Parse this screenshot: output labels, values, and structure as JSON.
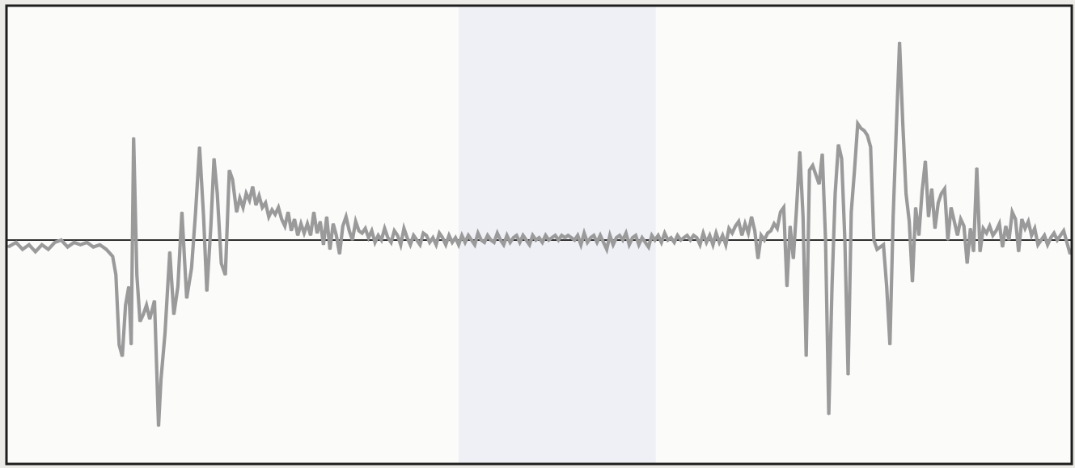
{
  "chart_data": {
    "type": "line",
    "title": "",
    "xlabel": "",
    "ylabel": "",
    "grid": false,
    "legend": "none",
    "xlim": [
      0,
      1320
    ],
    "ylim": [
      -1.0,
      1.0
    ],
    "baseline": 0,
    "colors": {
      "series": "#9a9a9a",
      "baseline": "#2f2f2f",
      "plot_background": "#fbfbfa",
      "highlight_band": "#eef0f5",
      "frame": "#1e1e1e"
    },
    "highlight_band": {
      "x_start": 560,
      "x_end": 805
    },
    "series": [
      {
        "points": [
          [
            0,
            -0.03
          ],
          [
            10,
            -0.01
          ],
          [
            18,
            -0.04
          ],
          [
            26,
            -0.02
          ],
          [
            34,
            -0.05
          ],
          [
            42,
            -0.02
          ],
          [
            50,
            -0.04
          ],
          [
            58,
            -0.01
          ],
          [
            66,
            0.0
          ],
          [
            74,
            -0.03
          ],
          [
            82,
            -0.01
          ],
          [
            90,
            -0.02
          ],
          [
            98,
            -0.01
          ],
          [
            106,
            -0.03
          ],
          [
            114,
            -0.02
          ],
          [
            122,
            -0.04
          ],
          [
            130,
            -0.07
          ],
          [
            134,
            -0.15
          ],
          [
            138,
            -0.45
          ],
          [
            142,
            -0.5
          ],
          [
            146,
            -0.28
          ],
          [
            150,
            -0.2
          ],
          [
            153,
            -0.45
          ],
          [
            156,
            0.44
          ],
          [
            160,
            -0.15
          ],
          [
            164,
            -0.35
          ],
          [
            168,
            -0.32
          ],
          [
            172,
            -0.28
          ],
          [
            176,
            -0.34
          ],
          [
            182,
            -0.26
          ],
          [
            187,
            -0.8
          ],
          [
            190,
            -0.6
          ],
          [
            195,
            -0.4
          ],
          [
            201,
            -0.05
          ],
          [
            206,
            -0.32
          ],
          [
            211,
            -0.2
          ],
          [
            216,
            0.12
          ],
          [
            222,
            -0.25
          ],
          [
            228,
            -0.12
          ],
          [
            233,
            0.12
          ],
          [
            238,
            0.4
          ],
          [
            243,
            0.1
          ],
          [
            247,
            -0.22
          ],
          [
            252,
            0.06
          ],
          [
            256,
            0.35
          ],
          [
            260,
            0.2
          ],
          [
            265,
            -0.1
          ],
          [
            270,
            -0.15
          ],
          [
            275,
            0.3
          ],
          [
            279,
            0.26
          ],
          [
            284,
            0.12
          ],
          [
            288,
            0.18
          ],
          [
            292,
            0.14
          ],
          [
            296,
            0.2
          ],
          [
            300,
            0.17
          ],
          [
            304,
            0.23
          ],
          [
            308,
            0.15
          ],
          [
            312,
            0.19
          ],
          [
            316,
            0.14
          ],
          [
            320,
            0.16
          ],
          [
            324,
            0.1
          ],
          [
            328,
            0.13
          ],
          [
            332,
            0.11
          ],
          [
            336,
            0.14
          ],
          [
            340,
            0.09
          ],
          [
            344,
            0.06
          ],
          [
            348,
            0.12
          ],
          [
            352,
            0.04
          ],
          [
            356,
            0.09
          ],
          [
            360,
            0.02
          ],
          [
            364,
            0.07
          ],
          [
            368,
            0.03
          ],
          [
            372,
            0.07
          ],
          [
            376,
            0.02
          ],
          [
            380,
            0.12
          ],
          [
            384,
            0.03
          ],
          [
            388,
            0.08
          ],
          [
            392,
            -0.02
          ],
          [
            396,
            0.1
          ],
          [
            400,
            -0.04
          ],
          [
            404,
            0.07
          ],
          [
            408,
            0.02
          ],
          [
            412,
            -0.06
          ],
          [
            416,
            0.06
          ],
          [
            420,
            0.1
          ],
          [
            424,
            0.04
          ],
          [
            428,
            0.0
          ],
          [
            432,
            0.08
          ],
          [
            436,
            0.04
          ],
          [
            440,
            0.03
          ],
          [
            444,
            0.05
          ],
          [
            448,
            0.01
          ],
          [
            452,
            0.04
          ],
          [
            456,
            -0.01
          ],
          [
            460,
            0.02
          ],
          [
            464,
            0.0
          ],
          [
            468,
            0.05
          ],
          [
            472,
            0.01
          ],
          [
            476,
            -0.01
          ],
          [
            480,
            0.04
          ],
          [
            484,
            0.02
          ],
          [
            488,
            -0.02
          ],
          [
            492,
            0.05
          ],
          [
            496,
            0.01
          ],
          [
            500,
            -0.02
          ],
          [
            504,
            0.02
          ],
          [
            508,
            0.0
          ],
          [
            512,
            -0.02
          ],
          [
            516,
            0.03
          ],
          [
            520,
            0.02
          ],
          [
            524,
            -0.01
          ],
          [
            528,
            0.01
          ],
          [
            532,
            -0.02
          ],
          [
            536,
            0.03
          ],
          [
            540,
            0.01
          ],
          [
            544,
            -0.02
          ],
          [
            548,
            0.02
          ],
          [
            552,
            -0.01
          ],
          [
            556,
            0.01
          ],
          [
            560,
            -0.02
          ],
          [
            564,
            0.02
          ],
          [
            568,
            -0.01
          ],
          [
            572,
            0.02
          ],
          [
            576,
            0.0
          ],
          [
            580,
            -0.02
          ],
          [
            584,
            0.03
          ],
          [
            588,
            0.0
          ],
          [
            592,
            -0.01
          ],
          [
            596,
            0.02
          ],
          [
            600,
            0.0
          ],
          [
            604,
            -0.01
          ],
          [
            608,
            0.03
          ],
          [
            612,
            0.0
          ],
          [
            616,
            -0.02
          ],
          [
            620,
            0.02
          ],
          [
            624,
            -0.01
          ],
          [
            628,
            0.01
          ],
          [
            632,
            0.02
          ],
          [
            636,
            -0.01
          ],
          [
            640,
            0.02
          ],
          [
            644,
            0.0
          ],
          [
            648,
            -0.02
          ],
          [
            652,
            0.02
          ],
          [
            656,
            0.0
          ],
          [
            660,
            0.01
          ],
          [
            664,
            -0.01
          ],
          [
            668,
            0.02
          ],
          [
            672,
            0.0
          ],
          [
            676,
            0.01
          ],
          [
            680,
            0.02
          ],
          [
            684,
            0.0
          ],
          [
            688,
            0.02
          ],
          [
            692,
            0.01
          ],
          [
            696,
            0.02
          ],
          [
            700,
            0.01
          ],
          [
            704,
            0.0
          ],
          [
            708,
            0.02
          ],
          [
            712,
            -0.02
          ],
          [
            716,
            0.03
          ],
          [
            720,
            -0.01
          ],
          [
            724,
            0.01
          ],
          [
            728,
            0.02
          ],
          [
            732,
            -0.01
          ],
          [
            736,
            0.02
          ],
          [
            740,
            -0.01
          ],
          [
            744,
            -0.04
          ],
          [
            748,
            0.02
          ],
          [
            752,
            -0.02
          ],
          [
            756,
            0.01
          ],
          [
            760,
            0.02
          ],
          [
            764,
            0.0
          ],
          [
            768,
            0.03
          ],
          [
            772,
            -0.02
          ],
          [
            776,
            0.01
          ],
          [
            780,
            0.02
          ],
          [
            784,
            -0.02
          ],
          [
            788,
            0.01
          ],
          [
            792,
            -0.01
          ],
          [
            796,
            -0.03
          ],
          [
            800,
            0.02
          ],
          [
            804,
            0.0
          ],
          [
            808,
            0.02
          ],
          [
            812,
            -0.01
          ],
          [
            816,
            0.03
          ],
          [
            820,
            0.0
          ],
          [
            824,
            0.01
          ],
          [
            828,
            -0.01
          ],
          [
            832,
            0.02
          ],
          [
            836,
            0.0
          ],
          [
            840,
            0.01
          ],
          [
            844,
            0.02
          ],
          [
            848,
            0.0
          ],
          [
            852,
            0.02
          ],
          [
            856,
            0.01
          ],
          [
            860,
            -0.02
          ],
          [
            864,
            0.03
          ],
          [
            868,
            -0.01
          ],
          [
            872,
            0.02
          ],
          [
            876,
            -0.02
          ],
          [
            880,
            0.03
          ],
          [
            884,
            -0.01
          ],
          [
            888,
            0.02
          ],
          [
            892,
            -0.02
          ],
          [
            896,
            0.05
          ],
          [
            900,
            0.03
          ],
          [
            904,
            0.06
          ],
          [
            908,
            0.08
          ],
          [
            912,
            0.02
          ],
          [
            916,
            0.07
          ],
          [
            920,
            0.03
          ],
          [
            924,
            0.1
          ],
          [
            928,
            0.04
          ],
          [
            932,
            -0.08
          ],
          [
            936,
            0.02
          ],
          [
            940,
            0.0
          ],
          [
            944,
            0.03
          ],
          [
            948,
            0.04
          ],
          [
            952,
            0.07
          ],
          [
            956,
            0.05
          ],
          [
            960,
            0.12
          ],
          [
            964,
            0.14
          ],
          [
            968,
            -0.2
          ],
          [
            972,
            0.06
          ],
          [
            976,
            -0.08
          ],
          [
            980,
            0.14
          ],
          [
            984,
            0.38
          ],
          [
            988,
            0.1
          ],
          [
            992,
            -0.5
          ],
          [
            996,
            0.3
          ],
          [
            1000,
            0.32
          ],
          [
            1004,
            0.28
          ],
          [
            1008,
            0.24
          ],
          [
            1012,
            0.37
          ],
          [
            1016,
            0.0
          ],
          [
            1020,
            -0.75
          ],
          [
            1024,
            -0.2
          ],
          [
            1028,
            0.2
          ],
          [
            1032,
            0.41
          ],
          [
            1036,
            0.35
          ],
          [
            1040,
            0.0
          ],
          [
            1044,
            -0.58
          ],
          [
            1048,
            0.12
          ],
          [
            1052,
            0.3
          ],
          [
            1056,
            0.5
          ],
          [
            1060,
            0.48
          ],
          [
            1064,
            0.47
          ],
          [
            1068,
            0.45
          ],
          [
            1072,
            0.4
          ],
          [
            1076,
            0.0
          ],
          [
            1080,
            -0.04
          ],
          [
            1084,
            -0.03
          ],
          [
            1088,
            -0.02
          ],
          [
            1092,
            -0.2
          ],
          [
            1096,
            -0.45
          ],
          [
            1100,
            0.1
          ],
          [
            1104,
            0.48
          ],
          [
            1108,
            0.85
          ],
          [
            1112,
            0.5
          ],
          [
            1116,
            0.2
          ],
          [
            1120,
            0.08
          ],
          [
            1124,
            -0.18
          ],
          [
            1128,
            0.14
          ],
          [
            1132,
            0.02
          ],
          [
            1136,
            0.21
          ],
          [
            1140,
            0.34
          ],
          [
            1144,
            0.1
          ],
          [
            1148,
            0.22
          ],
          [
            1152,
            0.05
          ],
          [
            1156,
            0.16
          ],
          [
            1160,
            0.2
          ],
          [
            1164,
            0.22
          ],
          [
            1168,
            0.0
          ],
          [
            1172,
            0.14
          ],
          [
            1176,
            0.08
          ],
          [
            1180,
            0.02
          ],
          [
            1184,
            0.09
          ],
          [
            1188,
            0.06
          ],
          [
            1192,
            -0.1
          ],
          [
            1196,
            0.05
          ],
          [
            1200,
            -0.05
          ],
          [
            1204,
            0.31
          ],
          [
            1208,
            -0.05
          ],
          [
            1212,
            0.05
          ],
          [
            1216,
            0.03
          ],
          [
            1220,
            0.06
          ],
          [
            1224,
            0.02
          ],
          [
            1228,
            0.04
          ],
          [
            1232,
            0.07
          ],
          [
            1236,
            -0.03
          ],
          [
            1240,
            0.06
          ],
          [
            1244,
            0.0
          ],
          [
            1248,
            0.12
          ],
          [
            1252,
            0.09
          ],
          [
            1256,
            -0.05
          ],
          [
            1260,
            0.09
          ],
          [
            1264,
            0.05
          ],
          [
            1268,
            0.08
          ],
          [
            1272,
            0.02
          ],
          [
            1276,
            0.05
          ],
          [
            1280,
            -0.02
          ],
          [
            1284,
            0.0
          ],
          [
            1288,
            0.02
          ],
          [
            1292,
            -0.02
          ],
          [
            1296,
            0.01
          ],
          [
            1300,
            0.03
          ],
          [
            1304,
            0.0
          ],
          [
            1308,
            0.02
          ],
          [
            1312,
            0.04
          ],
          [
            1316,
            -0.01
          ],
          [
            1320,
            -0.06
          ]
        ]
      }
    ]
  }
}
